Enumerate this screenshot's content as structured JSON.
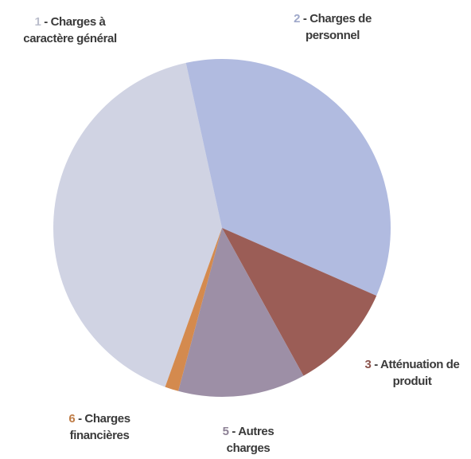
{
  "chart_data": {
    "type": "pie",
    "categories": [
      "1 - Charges à caractère général",
      "2 - Charges de personnel",
      "3 - Atténuation de produit",
      "5 - Autres charges",
      "6 - Charges financières"
    ],
    "values": [
      41.1,
      35.0,
      10.4,
      12.2,
      1.3
    ],
    "colors": [
      "#d0d3e3",
      "#b1bbe0",
      "#9b5d56",
      "#9d8fa6",
      "#d48a4e"
    ]
  }
}
